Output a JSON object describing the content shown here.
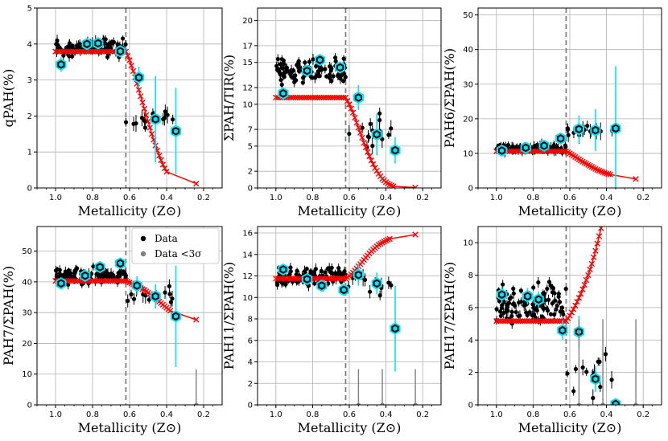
{
  "chart_data": [
    {
      "type": "scatter",
      "id": "qpah",
      "xlabel": "Metallicity (Z⊙)",
      "ylabel": "qPAH(%)",
      "xlim": [
        1.1,
        0.1
      ],
      "ylim": [
        0,
        5
      ],
      "xticks": [
        1.0,
        0.8,
        0.6,
        0.4,
        0.2
      ],
      "xtick_labels": [
        "1.0",
        "0.8",
        "0.6",
        "0.4",
        "0.2"
      ],
      "yticks": [
        0,
        1,
        2,
        3,
        4,
        5
      ],
      "ytick_labels": [
        "0",
        "1",
        "2",
        "3",
        "4",
        "5"
      ],
      "vline": 0.62,
      "bins": [
        [
          0.97,
          3.43,
          0.2
        ],
        [
          0.83,
          4.0,
          0.1
        ],
        [
          0.77,
          4.02,
          0.1
        ],
        [
          0.65,
          3.8,
          0.1
        ],
        [
          0.55,
          3.07,
          0.3
        ],
        [
          0.46,
          1.91,
          1.2
        ],
        [
          0.35,
          1.58,
          1.2
        ]
      ],
      "model": [
        [
          1.0,
          3.79
        ],
        [
          0.62,
          3.79
        ],
        [
          0.6,
          3.55
        ],
        [
          0.58,
          3.25
        ],
        [
          0.56,
          2.9
        ],
        [
          0.54,
          2.55
        ],
        [
          0.52,
          2.2
        ],
        [
          0.5,
          1.85
        ],
        [
          0.48,
          1.5
        ],
        [
          0.46,
          1.18
        ],
        [
          0.44,
          0.9
        ],
        [
          0.42,
          0.65
        ],
        [
          0.4,
          0.45
        ],
        [
          0.24,
          0.12
        ]
      ],
      "cloud": {
        "x_range": [
          0.62,
          1.0
        ],
        "y_center": 3.9,
        "y_spread": 0.35,
        "n": 100
      }
    },
    {
      "type": "scatter",
      "id": "pahtir",
      "xlabel": "Metallicity (Z⊙)",
      "ylabel": "ΣPAH/TIR(%)",
      "xlim": [
        1.1,
        0.1
      ],
      "ylim": [
        0,
        21.5
      ],
      "xticks": [
        1.0,
        0.8,
        0.6,
        0.4,
        0.2
      ],
      "xtick_labels": [
        "1.0",
        "0.8",
        "0.6",
        "0.4",
        "0.2"
      ],
      "yticks": [
        0,
        2,
        5,
        7,
        10,
        12,
        15,
        17,
        20
      ],
      "ytick_labels": [
        "0",
        "2",
        "5",
        "7",
        "10",
        "12",
        "15",
        "17",
        "20"
      ],
      "vline": 0.62,
      "bins": [
        [
          0.96,
          11.3,
          0.4
        ],
        [
          0.83,
          14.0,
          0.4
        ],
        [
          0.76,
          15.3,
          0.4
        ],
        [
          0.65,
          14.4,
          0.4
        ],
        [
          0.55,
          10.8,
          1.5
        ],
        [
          0.45,
          6.4,
          2.5
        ],
        [
          0.35,
          4.5,
          1.6
        ]
      ],
      "model": [
        [
          1.0,
          10.8
        ],
        [
          0.62,
          10.8
        ],
        [
          0.6,
          10.0
        ],
        [
          0.58,
          9.0
        ],
        [
          0.56,
          7.8
        ],
        [
          0.54,
          6.6
        ],
        [
          0.52,
          5.4
        ],
        [
          0.5,
          4.3
        ],
        [
          0.48,
          3.3
        ],
        [
          0.46,
          2.4
        ],
        [
          0.44,
          1.7
        ],
        [
          0.42,
          1.1
        ],
        [
          0.4,
          0.7
        ],
        [
          0.38,
          0.4
        ],
        [
          0.36,
          0.2
        ],
        [
          0.24,
          0.05
        ]
      ],
      "cloud": {
        "x_range": [
          0.62,
          1.0
        ],
        "y_center": 14.0,
        "y_spread": 2.2,
        "n": 100
      }
    },
    {
      "type": "scatter",
      "id": "pah6",
      "xlabel": "Metallicity (Z⊙)",
      "ylabel": "PAH6/ΣPAH(%)",
      "xlim": [
        1.1,
        0.1
      ],
      "ylim": [
        0,
        52
      ],
      "xticks": [
        1.0,
        0.8,
        0.6,
        0.4,
        0.2
      ],
      "xtick_labels": [
        "1.0",
        "0.8",
        "0.6",
        "0.4",
        "0.2"
      ],
      "yticks": [
        0,
        10,
        20,
        30,
        40,
        50
      ],
      "ytick_labels": [
        "0",
        "10",
        "20",
        "30",
        "40",
        "50"
      ],
      "vline": 0.62,
      "bins": [
        [
          0.97,
          10.8,
          0.5
        ],
        [
          0.84,
          11.6,
          0.5
        ],
        [
          0.74,
          12.2,
          0.5
        ],
        [
          0.65,
          14.3,
          0.5
        ],
        [
          0.55,
          17.0,
          4.0
        ],
        [
          0.46,
          16.7,
          6.0
        ],
        [
          0.35,
          17.2,
          18.0
        ]
      ],
      "model": [
        [
          1.0,
          10.6
        ],
        [
          0.62,
          10.6
        ],
        [
          0.6,
          10.0
        ],
        [
          0.58,
          9.3
        ],
        [
          0.56,
          8.6
        ],
        [
          0.54,
          7.9
        ],
        [
          0.52,
          7.3
        ],
        [
          0.5,
          6.7
        ],
        [
          0.48,
          6.1
        ],
        [
          0.46,
          5.5
        ],
        [
          0.44,
          5.0
        ],
        [
          0.42,
          4.6
        ],
        [
          0.4,
          4.2
        ],
        [
          0.38,
          3.9
        ],
        [
          0.24,
          2.6
        ]
      ],
      "cloud": {
        "x_range": [
          0.62,
          1.0
        ],
        "y_center": 11.5,
        "y_spread": 1.6,
        "n": 100
      }
    },
    {
      "type": "scatter",
      "id": "pah7",
      "xlabel": "Metallicity (Z⊙)",
      "ylabel": "PAH7/ΣPAH(%)",
      "xlim": [
        1.1,
        0.1
      ],
      "ylim": [
        0,
        58
      ],
      "xticks": [
        1.0,
        0.8,
        0.6,
        0.4,
        0.2
      ],
      "xtick_labels": [
        "1.0",
        "0.8",
        "0.6",
        "0.4",
        "0.2"
      ],
      "yticks": [
        0,
        10,
        20,
        30,
        40,
        50
      ],
      "ytick_labels": [
        "0",
        "10",
        "20",
        "30",
        "40",
        "50"
      ],
      "vline": 0.62,
      "bins": [
        [
          0.97,
          39.5,
          1.0
        ],
        [
          0.84,
          42.0,
          1.0
        ],
        [
          0.76,
          44.8,
          1.0
        ],
        [
          0.65,
          46.0,
          1.5
        ],
        [
          0.56,
          38.8,
          3.0
        ],
        [
          0.46,
          35.3,
          4.0
        ],
        [
          0.35,
          28.8,
          16.5
        ]
      ],
      "model": [
        [
          1.0,
          40.3
        ],
        [
          0.62,
          40.3
        ],
        [
          0.6,
          39.8
        ],
        [
          0.58,
          39.2
        ],
        [
          0.56,
          38.6
        ],
        [
          0.54,
          38.0
        ],
        [
          0.52,
          37.3
        ],
        [
          0.5,
          36.5
        ],
        [
          0.48,
          35.6
        ],
        [
          0.46,
          34.6
        ],
        [
          0.44,
          33.6
        ],
        [
          0.42,
          32.6
        ],
        [
          0.4,
          31.6
        ],
        [
          0.38,
          30.6
        ],
        [
          0.24,
          27.7
        ]
      ],
      "cloud": {
        "x_range": [
          0.62,
          1.0
        ],
        "y_center": 42.0,
        "y_spread": 3.5,
        "n": 100
      },
      "legend": {
        "entries": [
          "Data",
          "Data <3σ"
        ],
        "placement": "top-right"
      }
    },
    {
      "type": "scatter",
      "id": "pah11",
      "xlabel": "Metallicity (Z⊙)",
      "ylabel": "PAH11/ΣPAH(%)",
      "xlim": [
        1.1,
        0.1
      ],
      "ylim": [
        0,
        16.6
      ],
      "xticks": [
        1.0,
        0.8,
        0.6,
        0.4,
        0.2
      ],
      "xtick_labels": [
        "1.0",
        "0.8",
        "0.6",
        "0.4",
        "0.2"
      ],
      "yticks": [
        0,
        2,
        4,
        6,
        8,
        10,
        12,
        14,
        16
      ],
      "ytick_labels": [
        "0",
        "2",
        "4",
        "6",
        "8",
        "10",
        "12",
        "14",
        "16"
      ],
      "vline": 0.62,
      "bins": [
        [
          0.96,
          12.6,
          0.4
        ],
        [
          0.83,
          11.7,
          0.4
        ],
        [
          0.75,
          11.1,
          0.4
        ],
        [
          0.63,
          10.7,
          0.4
        ],
        [
          0.55,
          12.1,
          1.0
        ],
        [
          0.45,
          11.3,
          1.0
        ],
        [
          0.35,
          7.1,
          4.0
        ]
      ],
      "model": [
        [
          1.0,
          11.75
        ],
        [
          0.62,
          11.75
        ],
        [
          0.6,
          12.0
        ],
        [
          0.58,
          12.3
        ],
        [
          0.56,
          12.7
        ],
        [
          0.54,
          13.1
        ],
        [
          0.52,
          13.5
        ],
        [
          0.5,
          13.9
        ],
        [
          0.48,
          14.3
        ],
        [
          0.46,
          14.6
        ],
        [
          0.44,
          14.9
        ],
        [
          0.42,
          15.1
        ],
        [
          0.4,
          15.3
        ],
        [
          0.38,
          15.45
        ],
        [
          0.24,
          15.85
        ]
      ],
      "cloud": {
        "x_range": [
          0.62,
          1.0
        ],
        "y_center": 11.8,
        "y_spread": 1.3,
        "n": 100
      }
    },
    {
      "type": "scatter",
      "id": "pah17",
      "xlabel": "Metallicity (Z⊙)",
      "ylabel": "PAH17/ΣPAH(%)",
      "xlim": [
        1.1,
        0.1
      ],
      "ylim": [
        0,
        11
      ],
      "xticks": [
        1.0,
        0.8,
        0.6,
        0.4,
        0.2
      ],
      "xtick_labels": [
        "1.0",
        "0.8",
        "0.6",
        "0.4",
        "0.2"
      ],
      "yticks": [
        0,
        2,
        4,
        6,
        8,
        10
      ],
      "ytick_labels": [
        "0",
        "2",
        "4",
        "6",
        "8",
        "10"
      ],
      "vline": 0.62,
      "bins": [
        [
          0.97,
          6.8,
          0.5
        ],
        [
          0.83,
          6.7,
          0.5
        ],
        [
          0.77,
          6.5,
          0.5
        ],
        [
          0.64,
          4.6,
          0.6
        ],
        [
          0.55,
          4.5,
          1.0
        ],
        [
          0.46,
          1.6,
          0.8
        ],
        [
          0.35,
          0.05,
          0.1
        ]
      ],
      "model": [
        [
          1.0,
          5.17
        ],
        [
          0.62,
          5.17
        ],
        [
          0.6,
          5.5
        ],
        [
          0.58,
          5.9
        ],
        [
          0.56,
          6.35
        ],
        [
          0.54,
          6.85
        ],
        [
          0.52,
          7.4
        ],
        [
          0.5,
          8.0
        ],
        [
          0.48,
          8.7
        ],
        [
          0.46,
          9.5
        ],
        [
          0.44,
          10.4
        ],
        [
          0.43,
          10.9
        ]
      ],
      "cloud": {
        "x_range": [
          0.62,
          1.0
        ],
        "y_center": 6.3,
        "y_spread": 1.8,
        "n": 100
      }
    }
  ]
}
